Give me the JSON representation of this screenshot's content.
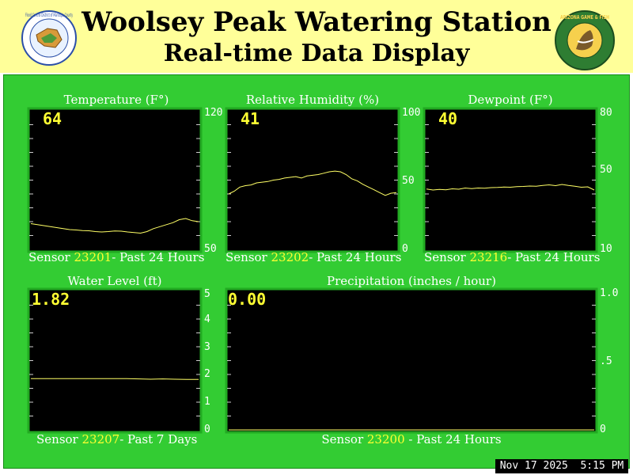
{
  "header": {
    "title_line1": "Woolsey Peak Watering Station",
    "title_line2": "Real-time Data Display",
    "logo_left_text": "Flood Control District of Maricopa County",
    "logo_right_text": "ARIZONA GAME & FISH"
  },
  "timestamp": "Nov 17 2025  5:15 PM",
  "colors": {
    "background": "#ffffff",
    "header": "#ffff99",
    "panel": "#33cc33",
    "plot_background": "#000000",
    "plot_border": "#22aa22",
    "series_line": "#ffff66",
    "value_text": "#ffff33",
    "sensor_id": "#ffff33"
  },
  "charts": {
    "temperature": {
      "title": "Temperature (F°)",
      "current": "64",
      "sensor_prefix": "Sensor ",
      "sensor_id": "23201",
      "sensor_suffix": "- Past 24 Hours",
      "ticks": [
        "120",
        "50"
      ]
    },
    "humidity": {
      "title": "Relative Humidity (%)",
      "current": "41",
      "sensor_prefix": "Sensor ",
      "sensor_id": "23202",
      "sensor_suffix": "- Past 24 Hours",
      "ticks": [
        "100",
        "50",
        "0"
      ]
    },
    "dewpoint": {
      "title": "Dewpoint (F°)",
      "current": "40",
      "sensor_prefix": "Sensor ",
      "sensor_id": "23216",
      "sensor_suffix": "- Past 24 Hours",
      "ticks": [
        "80",
        "50",
        "10"
      ]
    },
    "water": {
      "title": "Water Level (ft)",
      "current": "1.82",
      "sensor_prefix": "Sensor ",
      "sensor_id": "23207",
      "sensor_suffix": "- Past 7 Days",
      "ticks": [
        "5",
        "4",
        "3",
        "2",
        "1",
        "0"
      ]
    },
    "precip": {
      "title": "Precipitation (inches / hour)",
      "current": "0.00",
      "sensor_prefix": "Sensor ",
      "sensor_id": "23200",
      "sensor_suffix": " - Past 24 Hours",
      "ticks": [
        "1.0",
        ".5",
        "0"
      ]
    }
  },
  "chart_data": [
    {
      "id": "temperature",
      "type": "line",
      "title": "Temperature (F°)",
      "ylim": [
        50,
        120
      ],
      "yticks": [
        120,
        50
      ],
      "series": [
        {
          "values": [
            63,
            62.5,
            62,
            61.5,
            61,
            60.5,
            60,
            59.8,
            59.5,
            59.4,
            59,
            58.8,
            59,
            59.3,
            59.2,
            58.8,
            58.5,
            58.2,
            59,
            60.5,
            61.5,
            62.5,
            63.5,
            65,
            65.6,
            64.5,
            64
          ]
        }
      ]
    },
    {
      "id": "humidity",
      "type": "line",
      "title": "Relative Humidity (%)",
      "ylim": [
        0,
        100
      ],
      "yticks": [
        100,
        50,
        0
      ],
      "series": [
        {
          "values": [
            40,
            42,
            45,
            46,
            46.5,
            48,
            48.5,
            49,
            50,
            50.5,
            51.5,
            52,
            52.5,
            51.5,
            53,
            53.5,
            54,
            55,
            56,
            56.5,
            56,
            54,
            51,
            49.5,
            47,
            45,
            43,
            41,
            39,
            40.5,
            41
          ]
        }
      ]
    },
    {
      "id": "dewpoint",
      "type": "line",
      "title": "Dewpoint (F°)",
      "ylim": [
        10,
        80
      ],
      "yticks": [
        80,
        50,
        10
      ],
      "series": [
        {
          "values": [
            40.5,
            40,
            40.3,
            40.1,
            40.6,
            40.4,
            41,
            40.7,
            41,
            40.9,
            41.2,
            41.3,
            41.5,
            41.4,
            41.7,
            41.8,
            42,
            41.9,
            42.3,
            42.6,
            42.2,
            42.8,
            42.3,
            41.9,
            41.4,
            41.6,
            40
          ]
        }
      ]
    },
    {
      "id": "water",
      "type": "line",
      "title": "Water Level (ft)",
      "ylim": [
        0,
        5
      ],
      "yticks": [
        5,
        4,
        3,
        2,
        1,
        0
      ],
      "series": [
        {
          "values": [
            1.85,
            1.85,
            1.85,
            1.85,
            1.85,
            1.85,
            1.85,
            1.85,
            1.85,
            1.84,
            1.83,
            1.84,
            1.83,
            1.82,
            1.82
          ]
        }
      ]
    },
    {
      "id": "precip",
      "type": "line",
      "title": "Precipitation (inches / hour)",
      "ylim": [
        0,
        1.0
      ],
      "yticks": [
        1.0,
        0.5,
        0
      ],
      "series": [
        {
          "values": [
            0,
            0,
            0,
            0,
            0,
            0,
            0,
            0,
            0,
            0,
            0,
            0,
            0,
            0,
            0,
            0,
            0,
            0,
            0,
            0,
            0,
            0,
            0,
            0,
            0
          ]
        }
      ]
    }
  ]
}
